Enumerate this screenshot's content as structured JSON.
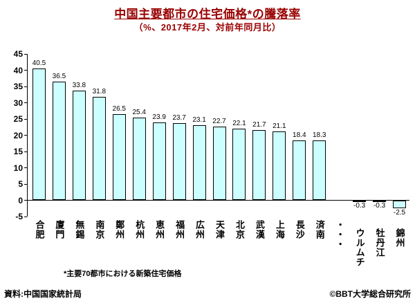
{
  "title": "中国主要都市の住宅価格*の騰落率",
  "subtitle": "（%、2017年2月、対前年同月比）",
  "footnote": "*主要70都市における新築住宅価格",
  "source": "資料:中国国家統計局",
  "credit": "©BBT大学総合研究所",
  "colors": {
    "title_text": "#990000",
    "bar_fill": "#ccffff",
    "bar_border": "#000000",
    "axis": "#000000",
    "background": "#ffffff"
  },
  "chart_data": {
    "type": "bar",
    "title": "中国主要都市の住宅価格*の騰落率",
    "subtitle": "（%、2017年2月、対前年同月比）",
    "categories": [
      "合肥",
      "廈門",
      "無錫",
      "南京",
      "鄭州",
      "杭州",
      "恵州",
      "福州",
      "広州",
      "天津",
      "北京",
      "武漢",
      "上海",
      "長沙",
      "済南",
      "・・・",
      "ウルムチ",
      "牡丹江",
      "錦州"
    ],
    "values": [
      40.5,
      36.5,
      33.8,
      31.8,
      26.5,
      25.4,
      23.9,
      23.7,
      23.1,
      22.7,
      22.1,
      21.7,
      21.1,
      18.4,
      18.3,
      null,
      -0.3,
      -0.3,
      -2.5
    ],
    "xlabel": "",
    "ylabel": "",
    "ylim": [
      -5,
      45
    ],
    "yticks": [
      45,
      40,
      35,
      30,
      25,
      20,
      15,
      10,
      5,
      0,
      -5
    ],
    "grid": false,
    "legend": null
  }
}
